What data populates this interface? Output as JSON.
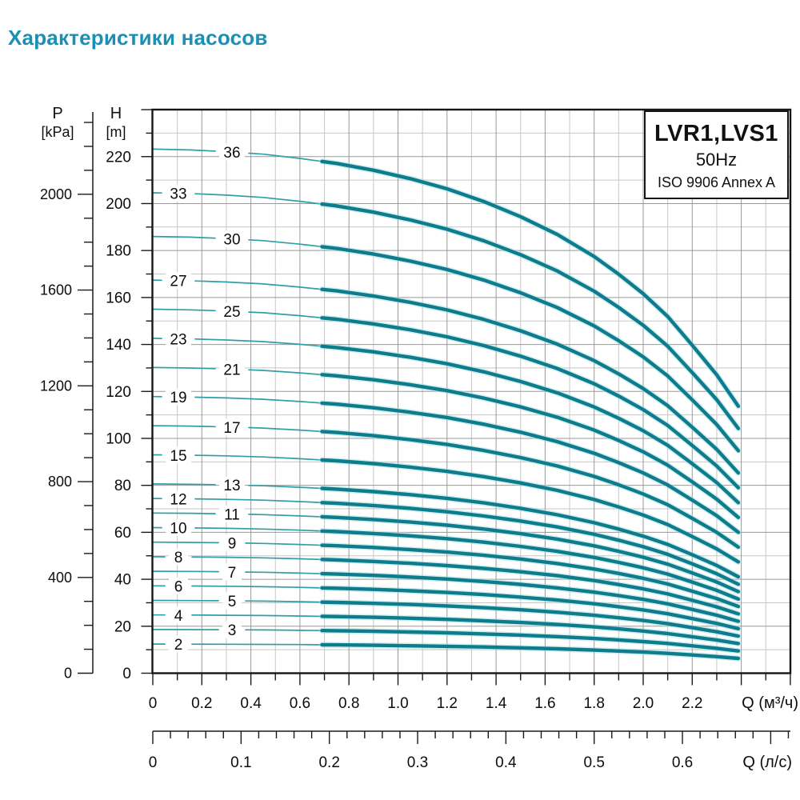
{
  "page": {
    "title": "Характеристики насосов"
  },
  "chart_data": {
    "type": "line",
    "title_box": {
      "model": "LVR1,LVS1",
      "frequency": "50Hz",
      "standard": "ISO 9906 Annex A"
    },
    "y_axis_head": {
      "name": "H",
      "unit": "[m]",
      "min": 0,
      "max": 240,
      "major_step": 20,
      "minor_step": 10,
      "labeled_max": 220
    },
    "y_axis_pressure": {
      "name": "P",
      "unit": "[kPa]",
      "labels": [
        0,
        400,
        800,
        1200,
        1600,
        2000
      ],
      "minor_step": 100,
      "max_tick": 2300
    },
    "x_axis_flow_m3h": {
      "name": "Q (м³/ч)",
      "tick_labels": [
        "0",
        "0.2",
        "0.4",
        "0.6",
        "0.8",
        "1.0",
        "1.2",
        "1.4",
        "1.6",
        "1.8",
        "2.0",
        "2.2"
      ],
      "label_step": 0.2,
      "minor_step": 0.1,
      "max": 2.6
    },
    "x_axis_flow_ls": {
      "name": "Q (л/с)",
      "tick_labels": [
        "0",
        "0.1",
        "0.2",
        "0.3",
        "0.4",
        "0.5",
        "0.6"
      ],
      "label_step": 0.1,
      "minor_step": 0.02,
      "max": 0.72
    },
    "curves": {
      "stage_counts": [
        36,
        33,
        30,
        27,
        25,
        23,
        21,
        19,
        17,
        15,
        13,
        12,
        11,
        10,
        9,
        8,
        7,
        6,
        5,
        4,
        3,
        2
      ],
      "label_sides": [
        "R",
        "L",
        "R",
        "L",
        "R",
        "L",
        "R",
        "L",
        "R",
        "L",
        "R",
        "L",
        "R",
        "L",
        "R",
        "L",
        "R",
        "L",
        "R",
        "L",
        "R",
        "L"
      ],
      "per_stage_head": {
        "q": [
          0,
          0.15,
          0.3,
          0.45,
          0.6,
          0.75,
          0.9,
          1.05,
          1.2,
          1.35,
          1.5,
          1.65,
          1.8,
          1.9,
          2.0,
          2.1,
          2.2,
          2.3,
          2.39
        ],
        "h": [
          6.2,
          6.19,
          6.17,
          6.14,
          6.09,
          6.03,
          5.95,
          5.85,
          5.73,
          5.58,
          5.4,
          5.19,
          4.93,
          4.72,
          4.49,
          4.22,
          3.88,
          3.53,
          3.15
        ]
      },
      "q_thick_start": 0.69,
      "q_end": 2.388
    },
    "colors": {
      "title": "#1b8fb4",
      "curve_thick": "#0d7c8c",
      "curve_thin": "#2f9fa6",
      "curve_halo": "#aadde2",
      "grid_minor": "#c7c7c7",
      "grid_major": "#999999",
      "axis": "#1a1a1a"
    }
  }
}
